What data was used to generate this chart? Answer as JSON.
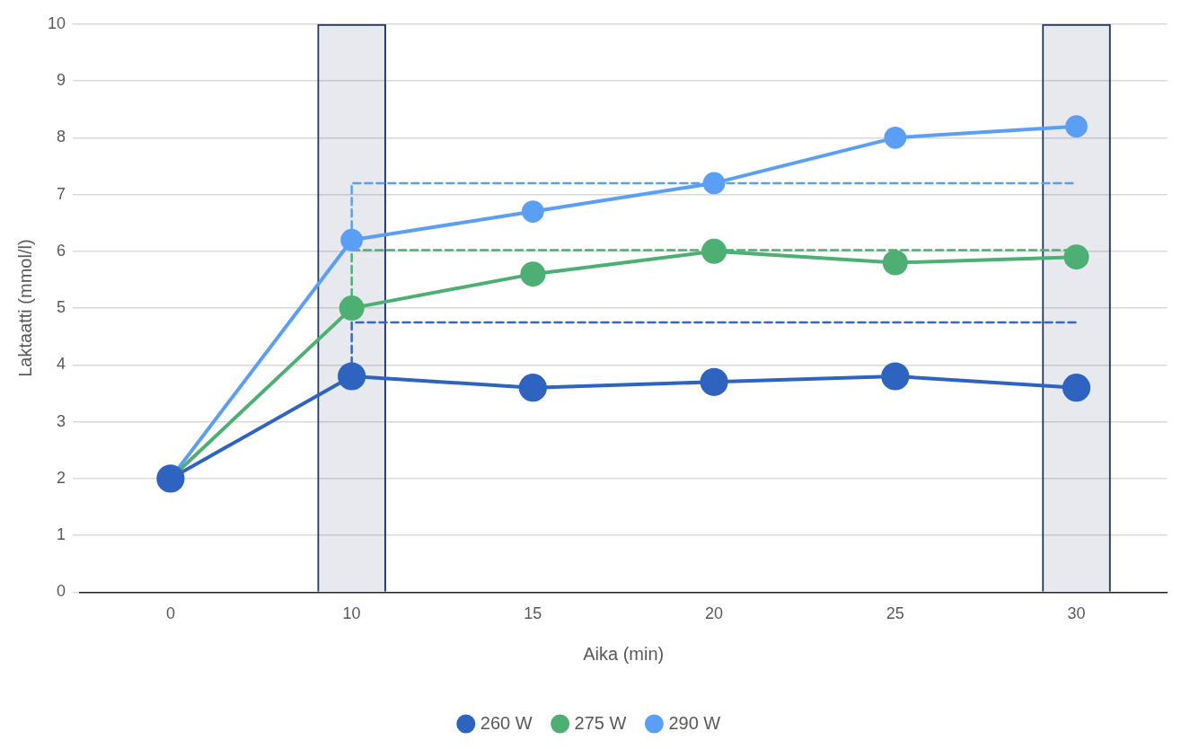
{
  "chart_data": {
    "type": "line",
    "xlabel": "Aika (min)",
    "ylabel": "Laktaatti (mmol/l)",
    "categories": [
      "0",
      "10",
      "15",
      "20",
      "25",
      "30"
    ],
    "ylim": [
      0,
      10
    ],
    "yticks": [
      0,
      1,
      2,
      3,
      4,
      5,
      6,
      7,
      8,
      9,
      10
    ],
    "grid": "y",
    "legend": "bottom",
    "marker": "circle",
    "line_style": "solid",
    "series": [
      {
        "type": "bar",
        "color": "#203864",
        "values": [
          null,
          10,
          null,
          null,
          null,
          10
        ]
      },
      {
        "name": "260 W",
        "color": "#2e64c0",
        "values": [
          2,
          3.8,
          3.6,
          3.7,
          3.8,
          3.6
        ]
      },
      {
        "name": "275 W",
        "color": "#4daf73",
        "values": [
          2,
          5,
          5.6,
          6,
          5.8,
          5.9
        ]
      },
      {
        "name": "290 W",
        "color": "#5b9ff5",
        "values": [
          2,
          6.2,
          6.7,
          7.2,
          8,
          8.2
        ]
      },
      {
        "color": "#3a65c0",
        "line_style": "dashed",
        "marker": "none",
        "x": [
          "10",
          "10",
          "30"
        ],
        "values": [
          3.8,
          4.75,
          4.75
        ]
      },
      {
        "color": "#4daf73",
        "line_style": "dashed",
        "marker": "none",
        "x": [
          "10",
          "10",
          "30"
        ],
        "values": [
          5,
          6.02,
          6.02
        ]
      },
      {
        "color": "#5b9ff5",
        "line_style": "dashed",
        "marker": "none",
        "x": [
          "10",
          "10",
          "30"
        ],
        "values": [
          6.2,
          7.2,
          7.2
        ]
      }
    ]
  }
}
